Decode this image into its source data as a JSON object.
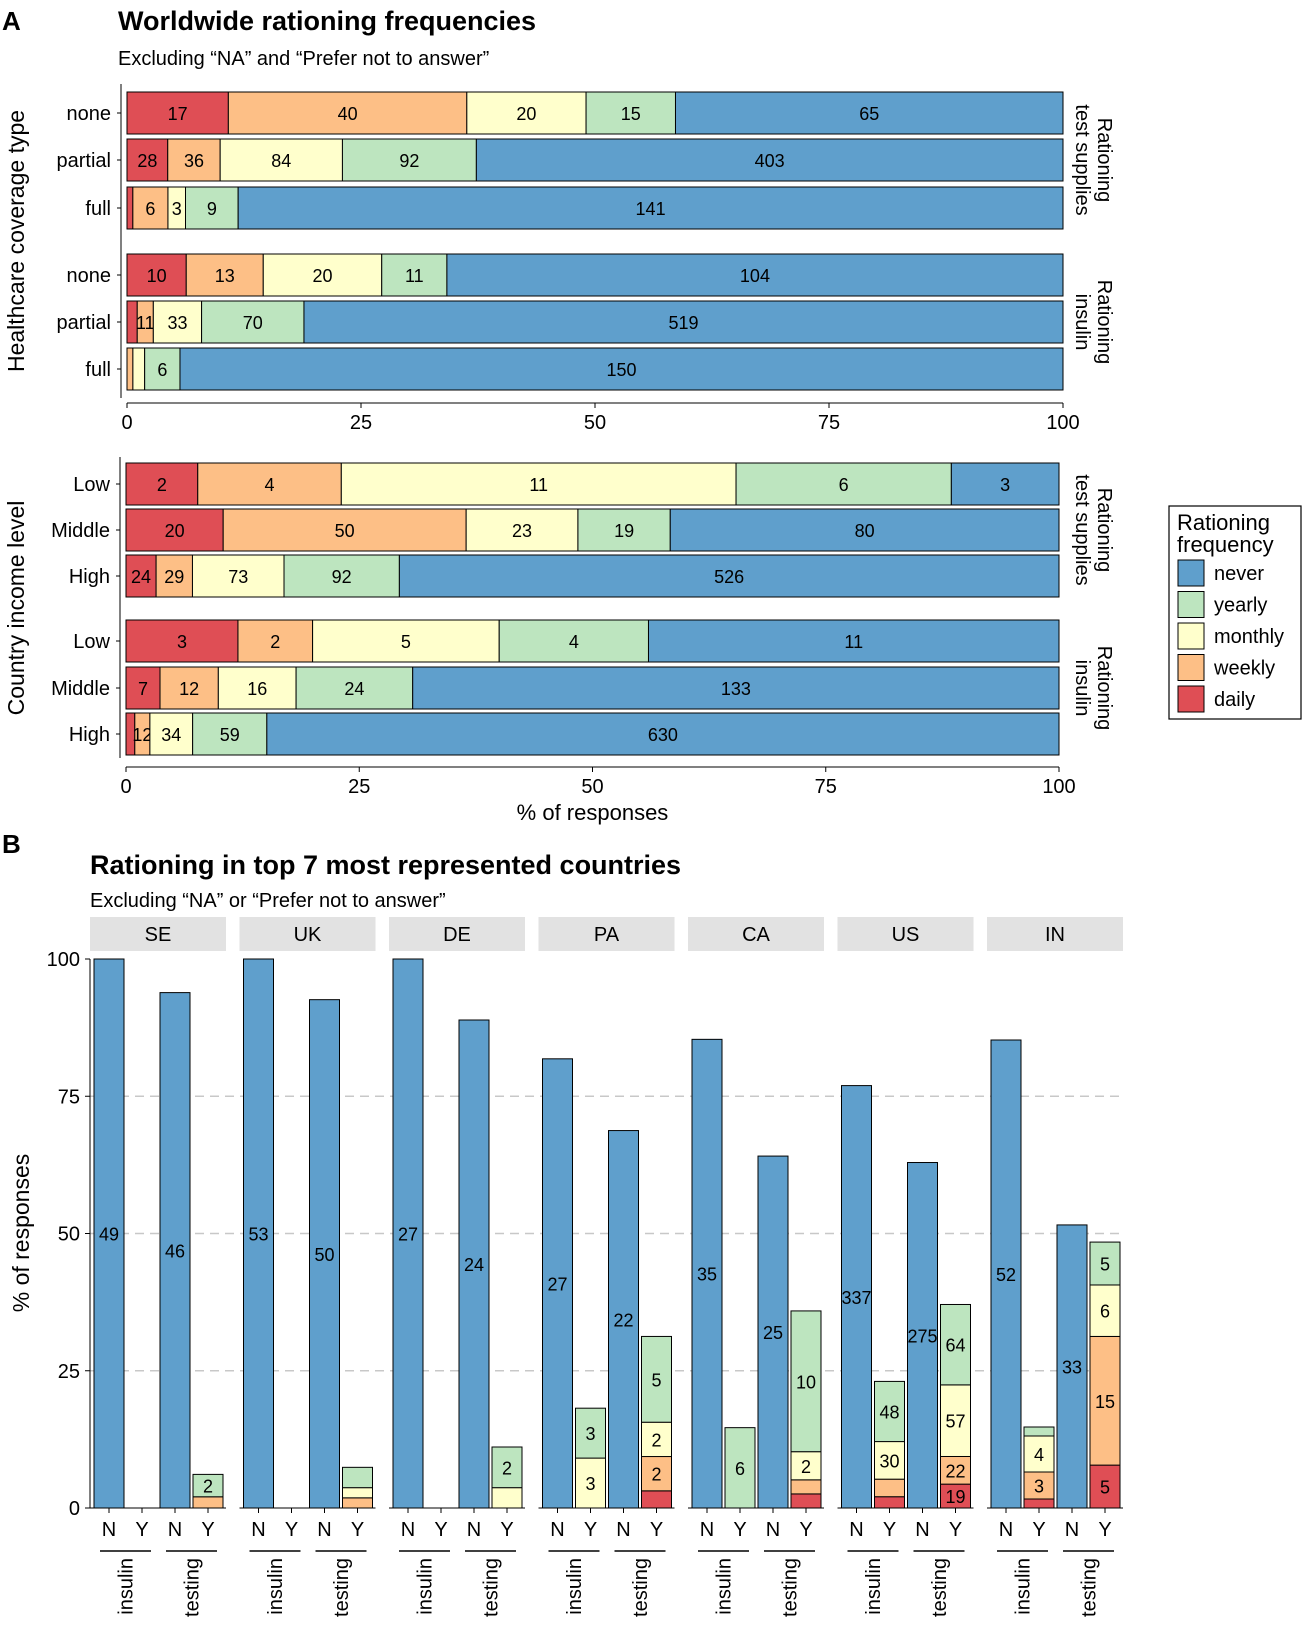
{
  "colors": {
    "never": "#5f9fcc",
    "yearly": "#bde5bf",
    "monthly": "#ffffcc",
    "weekly": "#fdbf86",
    "daily": "#df4e55",
    "strip": "#e2e2e2",
    "grid": "#c8c8c8"
  },
  "legend": {
    "title_line1": "Rationing",
    "title_line2": "frequency",
    "items": [
      {
        "key": "never",
        "label": "never"
      },
      {
        "key": "yearly",
        "label": "yearly"
      },
      {
        "key": "monthly",
        "label": "monthly"
      },
      {
        "key": "weekly",
        "label": "weekly"
      },
      {
        "key": "daily",
        "label": "daily"
      }
    ]
  },
  "chart_data": [
    {
      "type": "bar",
      "orientation": "horizontal",
      "stacked": "percent",
      "panel_letter": "A",
      "title": "Worldwide rationing frequencies",
      "subtitle": "Excluding “NA” and “Prefer not to answer”",
      "series_order": [
        "daily",
        "weekly",
        "monthly",
        "yearly",
        "never"
      ],
      "xlabel": "",
      "ylabel": "Healthcare coverage type",
      "xlim": [
        0,
        100
      ],
      "xticks": [
        "0",
        "25",
        "50",
        "75",
        "100"
      ],
      "facets": [
        {
          "label_line1": "Rationing",
          "label_line2": "test supplies",
          "rows": [
            {
              "category": "none",
              "daily": 17,
              "weekly": 40,
              "monthly": 20,
              "yearly": 15,
              "never": 65
            },
            {
              "category": "partial",
              "daily": 28,
              "weekly": 36,
              "monthly": 84,
              "yearly": 92,
              "never": 403
            },
            {
              "category": "full",
              "daily": 1,
              "weekly": 6,
              "monthly": 3,
              "yearly": 9,
              "never": 141
            }
          ]
        },
        {
          "label_line1": "Rationing",
          "label_line2": "insulin",
          "rows": [
            {
              "category": "none",
              "daily": 10,
              "weekly": 13,
              "monthly": 20,
              "yearly": 11,
              "never": 104
            },
            {
              "category": "partial",
              "daily": 7,
              "weekly": 11,
              "monthly": 33,
              "yearly": 70,
              "never": 519
            },
            {
              "category": "full",
              "daily": 0,
              "weekly": 1,
              "monthly": 2,
              "yearly": 6,
              "never": 150
            }
          ]
        }
      ]
    },
    {
      "type": "bar",
      "orientation": "horizontal",
      "stacked": "percent",
      "panel_letter": "",
      "title": "",
      "subtitle": "",
      "series_order": [
        "daily",
        "weekly",
        "monthly",
        "yearly",
        "never"
      ],
      "xlabel": "% of responses",
      "ylabel": "Country income level",
      "xlim": [
        0,
        100
      ],
      "xticks": [
        "0",
        "25",
        "50",
        "75",
        "100"
      ],
      "facets": [
        {
          "label_line1": "Rationing",
          "label_line2": "test supplies",
          "rows": [
            {
              "category": "Low",
              "daily": 2,
              "weekly": 4,
              "monthly": 11,
              "yearly": 6,
              "never": 3
            },
            {
              "category": "Middle",
              "daily": 20,
              "weekly": 50,
              "monthly": 23,
              "yearly": 19,
              "never": 80
            },
            {
              "category": "High",
              "daily": 24,
              "weekly": 29,
              "monthly": 73,
              "yearly": 92,
              "never": 526
            }
          ]
        },
        {
          "label_line1": "Rationing",
          "label_line2": "insulin",
          "rows": [
            {
              "category": "Low",
              "daily": 3,
              "weekly": 2,
              "monthly": 5,
              "yearly": 4,
              "never": 11
            },
            {
              "category": "Middle",
              "daily": 7,
              "weekly": 12,
              "monthly": 16,
              "yearly": 24,
              "never": 133
            },
            {
              "category": "High",
              "daily": 7,
              "weekly": 12,
              "monthly": 34,
              "yearly": 59,
              "never": 630
            }
          ]
        }
      ]
    },
    {
      "type": "bar",
      "orientation": "vertical",
      "stacked": "percent",
      "panel_letter": "B",
      "title": "Rationing in top 7 most represented countries",
      "subtitle": "Excluding “NA” or “Prefer not to answer”",
      "series_order": [
        "daily",
        "weekly",
        "monthly",
        "yearly",
        "never"
      ],
      "xlabel": "",
      "ylabel": "% of responses",
      "ylim": [
        0,
        100
      ],
      "yticks": [
        "0",
        "25",
        "50",
        "75",
        "100"
      ],
      "x_group_labels": [
        "insulin",
        "testing"
      ],
      "x_bar_labels": [
        "N",
        "Y"
      ],
      "countries": [
        {
          "code": "SE",
          "groups": [
            {
              "name": "insulin",
              "bars": [
                {
                  "label": "N",
                  "segments": [
                    {
                      "s": "never",
                      "v": 49
                    }
                  ]
                },
                {
                  "label": "Y",
                  "segments": []
                }
              ]
            },
            {
              "name": "testing",
              "bars": [
                {
                  "label": "N",
                  "segments": [
                    {
                      "s": "never",
                      "v": 46
                    }
                  ]
                },
                {
                  "label": "Y",
                  "segments": [
                    {
                      "s": "weekly",
                      "v": 1,
                      "hide": true
                    },
                    {
                      "s": "yearly",
                      "v": 2
                    }
                  ]
                }
              ]
            }
          ]
        },
        {
          "code": "UK",
          "groups": [
            {
              "name": "insulin",
              "bars": [
                {
                  "label": "N",
                  "segments": [
                    {
                      "s": "never",
                      "v": 53
                    }
                  ]
                },
                {
                  "label": "Y",
                  "segments": []
                }
              ]
            },
            {
              "name": "testing",
              "bars": [
                {
                  "label": "N",
                  "segments": [
                    {
                      "s": "never",
                      "v": 50
                    }
                  ]
                },
                {
                  "label": "Y",
                  "segments": [
                    {
                      "s": "weekly",
                      "v": 1,
                      "hide": true
                    },
                    {
                      "s": "monthly",
                      "v": 1,
                      "hide": true
                    },
                    {
                      "s": "yearly",
                      "v": 2,
                      "hide": true
                    }
                  ]
                }
              ]
            }
          ]
        },
        {
          "code": "DE",
          "groups": [
            {
              "name": "insulin",
              "bars": [
                {
                  "label": "N",
                  "segments": [
                    {
                      "s": "never",
                      "v": 27
                    }
                  ]
                },
                {
                  "label": "Y",
                  "segments": []
                }
              ]
            },
            {
              "name": "testing",
              "bars": [
                {
                  "label": "N",
                  "segments": [
                    {
                      "s": "never",
                      "v": 24
                    }
                  ]
                },
                {
                  "label": "Y",
                  "segments": [
                    {
                      "s": "monthly",
                      "v": 1,
                      "hide": true
                    },
                    {
                      "s": "yearly",
                      "v": 2
                    }
                  ]
                }
              ]
            }
          ]
        },
        {
          "code": "PA",
          "groups": [
            {
              "name": "insulin",
              "bars": [
                {
                  "label": "N",
                  "segments": [
                    {
                      "s": "never",
                      "v": 27
                    }
                  ]
                },
                {
                  "label": "Y",
                  "segments": [
                    {
                      "s": "monthly",
                      "v": 3
                    },
                    {
                      "s": "yearly",
                      "v": 3
                    }
                  ]
                }
              ]
            },
            {
              "name": "testing",
              "bars": [
                {
                  "label": "N",
                  "segments": [
                    {
                      "s": "never",
                      "v": 22
                    }
                  ]
                },
                {
                  "label": "Y",
                  "segments": [
                    {
                      "s": "daily",
                      "v": 1,
                      "hide": true
                    },
                    {
                      "s": "weekly",
                      "v": 2
                    },
                    {
                      "s": "monthly",
                      "v": 2
                    },
                    {
                      "s": "yearly",
                      "v": 5
                    }
                  ]
                }
              ]
            }
          ]
        },
        {
          "code": "CA",
          "groups": [
            {
              "name": "insulin",
              "bars": [
                {
                  "label": "N",
                  "segments": [
                    {
                      "s": "never",
                      "v": 35
                    }
                  ]
                },
                {
                  "label": "Y",
                  "segments": [
                    {
                      "s": "yearly",
                      "v": 6
                    }
                  ]
                }
              ]
            },
            {
              "name": "testing",
              "bars": [
                {
                  "label": "N",
                  "segments": [
                    {
                      "s": "never",
                      "v": 25
                    }
                  ]
                },
                {
                  "label": "Y",
                  "segments": [
                    {
                      "s": "daily",
                      "v": 1,
                      "hide": true
                    },
                    {
                      "s": "weekly",
                      "v": 1,
                      "hide": true
                    },
                    {
                      "s": "monthly",
                      "v": 2
                    },
                    {
                      "s": "yearly",
                      "v": 10
                    }
                  ]
                }
              ]
            }
          ]
        },
        {
          "code": "US",
          "groups": [
            {
              "name": "insulin",
              "bars": [
                {
                  "label": "N",
                  "segments": [
                    {
                      "s": "never",
                      "v": 337
                    }
                  ]
                },
                {
                  "label": "Y",
                  "segments": [
                    {
                      "s": "daily",
                      "v": 9,
                      "hide": true
                    },
                    {
                      "s": "weekly",
                      "v": 14,
                      "hide": true
                    },
                    {
                      "s": "monthly",
                      "v": 30
                    },
                    {
                      "s": "yearly",
                      "v": 48
                    }
                  ]
                }
              ]
            },
            {
              "name": "testing",
              "bars": [
                {
                  "label": "N",
                  "segments": [
                    {
                      "s": "never",
                      "v": 275
                    }
                  ]
                },
                {
                  "label": "Y",
                  "segments": [
                    {
                      "s": "daily",
                      "v": 19
                    },
                    {
                      "s": "weekly",
                      "v": 22
                    },
                    {
                      "s": "monthly",
                      "v": 57
                    },
                    {
                      "s": "yearly",
                      "v": 64
                    }
                  ]
                }
              ]
            }
          ]
        },
        {
          "code": "IN",
          "groups": [
            {
              "name": "insulin",
              "bars": [
                {
                  "label": "N",
                  "segments": [
                    {
                      "s": "never",
                      "v": 52
                    }
                  ]
                },
                {
                  "label": "Y",
                  "segments": [
                    {
                      "s": "daily",
                      "v": 1,
                      "hide": true
                    },
                    {
                      "s": "weekly",
                      "v": 3
                    },
                    {
                      "s": "monthly",
                      "v": 4
                    },
                    {
                      "s": "yearly",
                      "v": 1,
                      "hide": true
                    }
                  ]
                }
              ]
            },
            {
              "name": "testing",
              "bars": [
                {
                  "label": "N",
                  "segments": [
                    {
                      "s": "never",
                      "v": 33
                    }
                  ]
                },
                {
                  "label": "Y",
                  "segments": [
                    {
                      "s": "daily",
                      "v": 5
                    },
                    {
                      "s": "weekly",
                      "v": 15
                    },
                    {
                      "s": "monthly",
                      "v": 6
                    },
                    {
                      "s": "yearly",
                      "v": 5
                    }
                  ]
                }
              ]
            }
          ]
        }
      ]
    }
  ]
}
